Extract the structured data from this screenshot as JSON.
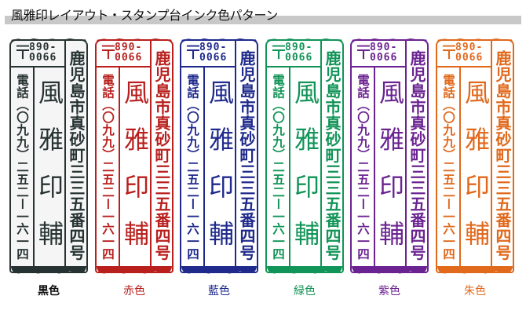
{
  "title": "風雅印レイアウト・スタンプ台インク色パターン",
  "stamp_content": {
    "postal_mark": "〒",
    "postal_code_line1": "890-",
    "postal_code_line2": "0066",
    "address": "鹿児島市真砂町三三五番四号",
    "name": "風雅印輔",
    "phone": "電話（〇九九）二五二ー一六一四"
  },
  "inks": [
    {
      "label": "黒色",
      "color": "#263332",
      "label_color": "#111111"
    },
    {
      "label": "赤色",
      "color": "#b81f1d",
      "label_color": "#b81f1d"
    },
    {
      "label": "藍色",
      "color": "#1f2a8c",
      "label_color": "#1f2a8c"
    },
    {
      "label": "緑色",
      "color": "#119457",
      "label_color": "#119457"
    },
    {
      "label": "紫色",
      "color": "#6b2391",
      "label_color": "#6b2391"
    },
    {
      "label": "朱色",
      "color": "#e0691c",
      "label_color": "#e0691c"
    }
  ]
}
